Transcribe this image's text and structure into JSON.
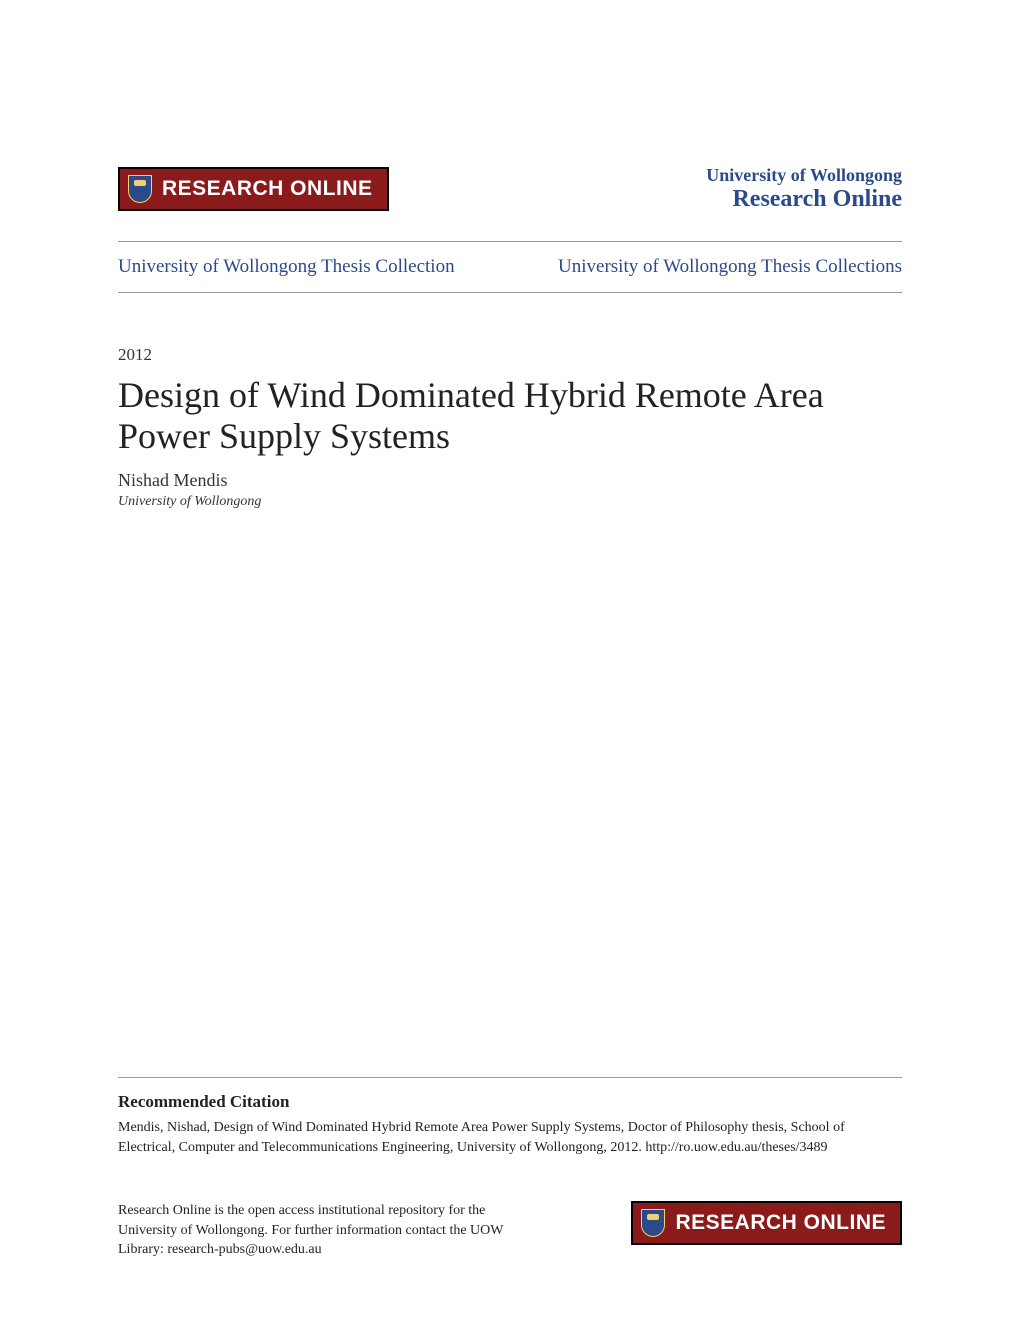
{
  "header": {
    "banner_text": "RESEARCH ONLINE",
    "university": "University of Wollongong",
    "site_name": "Research Online"
  },
  "nav": {
    "left": "University of Wollongong Thesis Collection",
    "right": "University of Wollongong Thesis Collections"
  },
  "paper": {
    "year": "2012",
    "title": "Design of Wind Dominated Hybrid Remote Area Power Supply Systems",
    "author": "Nishad Mendis",
    "affiliation": "University of Wollongong"
  },
  "citation": {
    "heading": "Recommended Citation",
    "text": "Mendis, Nishad, Design of Wind Dominated Hybrid Remote Area Power Supply Systems, Doctor of Philosophy thesis, School of Electrical, Computer and Telecommunications Engineering, University of Wollongong, 2012. http://ro.uow.edu.au/theses/3489"
  },
  "footer": {
    "text": "Research Online is the open access institutional repository for the University of Wollongong. For further information contact the UOW Library: research-pubs@uow.edu.au",
    "banner_text": "RESEARCH ONLINE"
  },
  "colors": {
    "banner_bg": "#8b1a1a",
    "banner_border": "#000000",
    "banner_text": "#ffffff",
    "link_color": "#2b4a8a",
    "text_color": "#222222",
    "divider": "#999999",
    "shield_bg": "#2b4a8a",
    "shield_accent": "#f0d070"
  },
  "typography": {
    "title_size": 36,
    "nav_size": 19,
    "body_size": 14,
    "banner_size": 21,
    "font_family": "Georgia, serif"
  }
}
